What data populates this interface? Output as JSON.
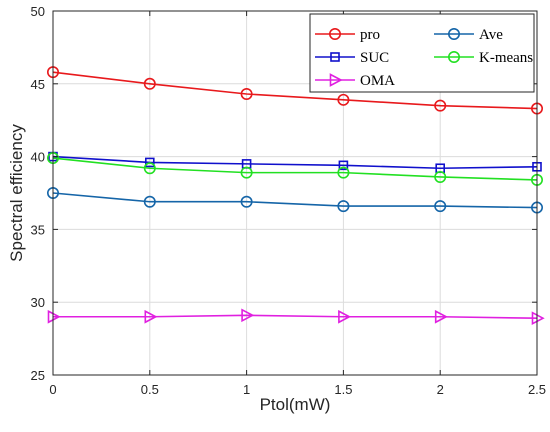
{
  "chart_data": {
    "type": "line",
    "xlabel": "Ptol(mW)",
    "ylabel": "Spectral efficiency",
    "title": "",
    "x": [
      0,
      0.5,
      1,
      1.5,
      2,
      2.5
    ],
    "xlim": [
      0,
      2.5
    ],
    "ylim": [
      25,
      50
    ],
    "xticks": [
      "0",
      "0.5",
      "1",
      "1.5",
      "2",
      "2.5"
    ],
    "yticks": [
      "25",
      "30",
      "35",
      "40",
      "45",
      "50"
    ],
    "grid": true,
    "legend_position": "top-right",
    "series": [
      {
        "name": "pro",
        "color": "#e8191c",
        "marker": "circle",
        "values": [
          45.8,
          45.0,
          44.3,
          43.9,
          43.5,
          43.3
        ]
      },
      {
        "name": "Ave",
        "color": "#1565a8",
        "marker": "circle",
        "values": [
          37.5,
          36.9,
          36.9,
          36.6,
          36.6,
          36.5
        ]
      },
      {
        "name": "SUC",
        "color": "#1010cc",
        "marker": "square",
        "values": [
          40.0,
          39.6,
          39.5,
          39.4,
          39.2,
          39.3
        ]
      },
      {
        "name": "K-means",
        "color": "#22e022",
        "marker": "circle",
        "values": [
          39.9,
          39.2,
          38.9,
          38.9,
          38.6,
          38.4
        ]
      },
      {
        "name": "OMA",
        "color": "#e020e0",
        "marker": "triangle-right",
        "values": [
          29.0,
          29.0,
          29.1,
          29.0,
          29.0,
          28.9
        ]
      }
    ]
  }
}
